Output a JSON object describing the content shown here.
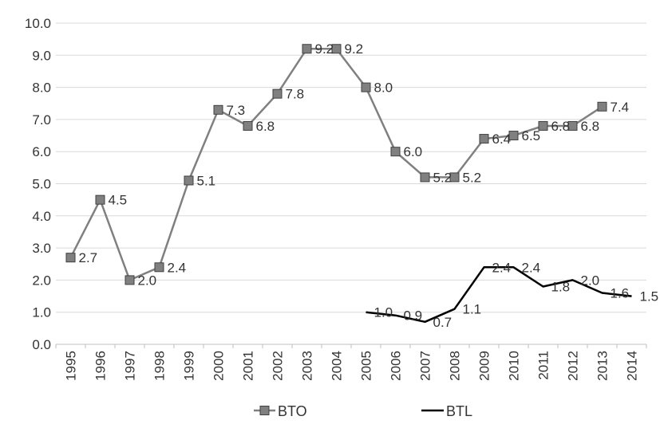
{
  "chart_data": {
    "type": "line",
    "title": "",
    "xlabel": "",
    "ylabel": "",
    "ylim": [
      0,
      10
    ],
    "y_ticks": [
      "0.0",
      "1.0",
      "2.0",
      "3.0",
      "4.0",
      "5.0",
      "6.0",
      "7.0",
      "8.0",
      "9.0",
      "10.0"
    ],
    "categories": [
      "1995",
      "1996",
      "1997",
      "1998",
      "1999",
      "2000",
      "2001",
      "2002",
      "2003",
      "2004",
      "2005",
      "2006",
      "2007",
      "2008",
      "2009",
      "2010",
      "2011",
      "2012",
      "2013",
      "2014"
    ],
    "grid": "horizontal",
    "legend_position": "bottom",
    "series": [
      {
        "name": "BTO",
        "color": "#808080",
        "marker": "square",
        "values": [
          2.7,
          4.5,
          2.0,
          2.4,
          5.1,
          7.3,
          6.8,
          7.8,
          9.2,
          9.2,
          8.0,
          6.0,
          5.2,
          5.2,
          6.4,
          6.5,
          6.8,
          6.8,
          7.4,
          null
        ],
        "labels": [
          "2.7",
          "4.5",
          "2.0",
          "2.4",
          "5.1",
          "7.3",
          "6.8",
          "7.8",
          "9.2",
          "9.2",
          "8.0",
          "6.0",
          "5.2",
          "5.2",
          "6.4",
          "6.5",
          "6.8",
          "6.8",
          "7.4",
          null
        ]
      },
      {
        "name": "BTL",
        "color": "#000000",
        "marker": "none",
        "values": [
          null,
          null,
          null,
          null,
          null,
          null,
          null,
          null,
          null,
          null,
          1.0,
          0.9,
          0.7,
          1.1,
          2.4,
          2.4,
          1.8,
          2.0,
          1.6,
          1.5
        ],
        "labels": [
          null,
          null,
          null,
          null,
          null,
          null,
          null,
          null,
          null,
          null,
          "1.0",
          "0.9",
          "0.7",
          "1.1",
          "2.4",
          "2.4",
          "1.8",
          "2.0",
          "1.6",
          "1.5"
        ]
      }
    ]
  }
}
